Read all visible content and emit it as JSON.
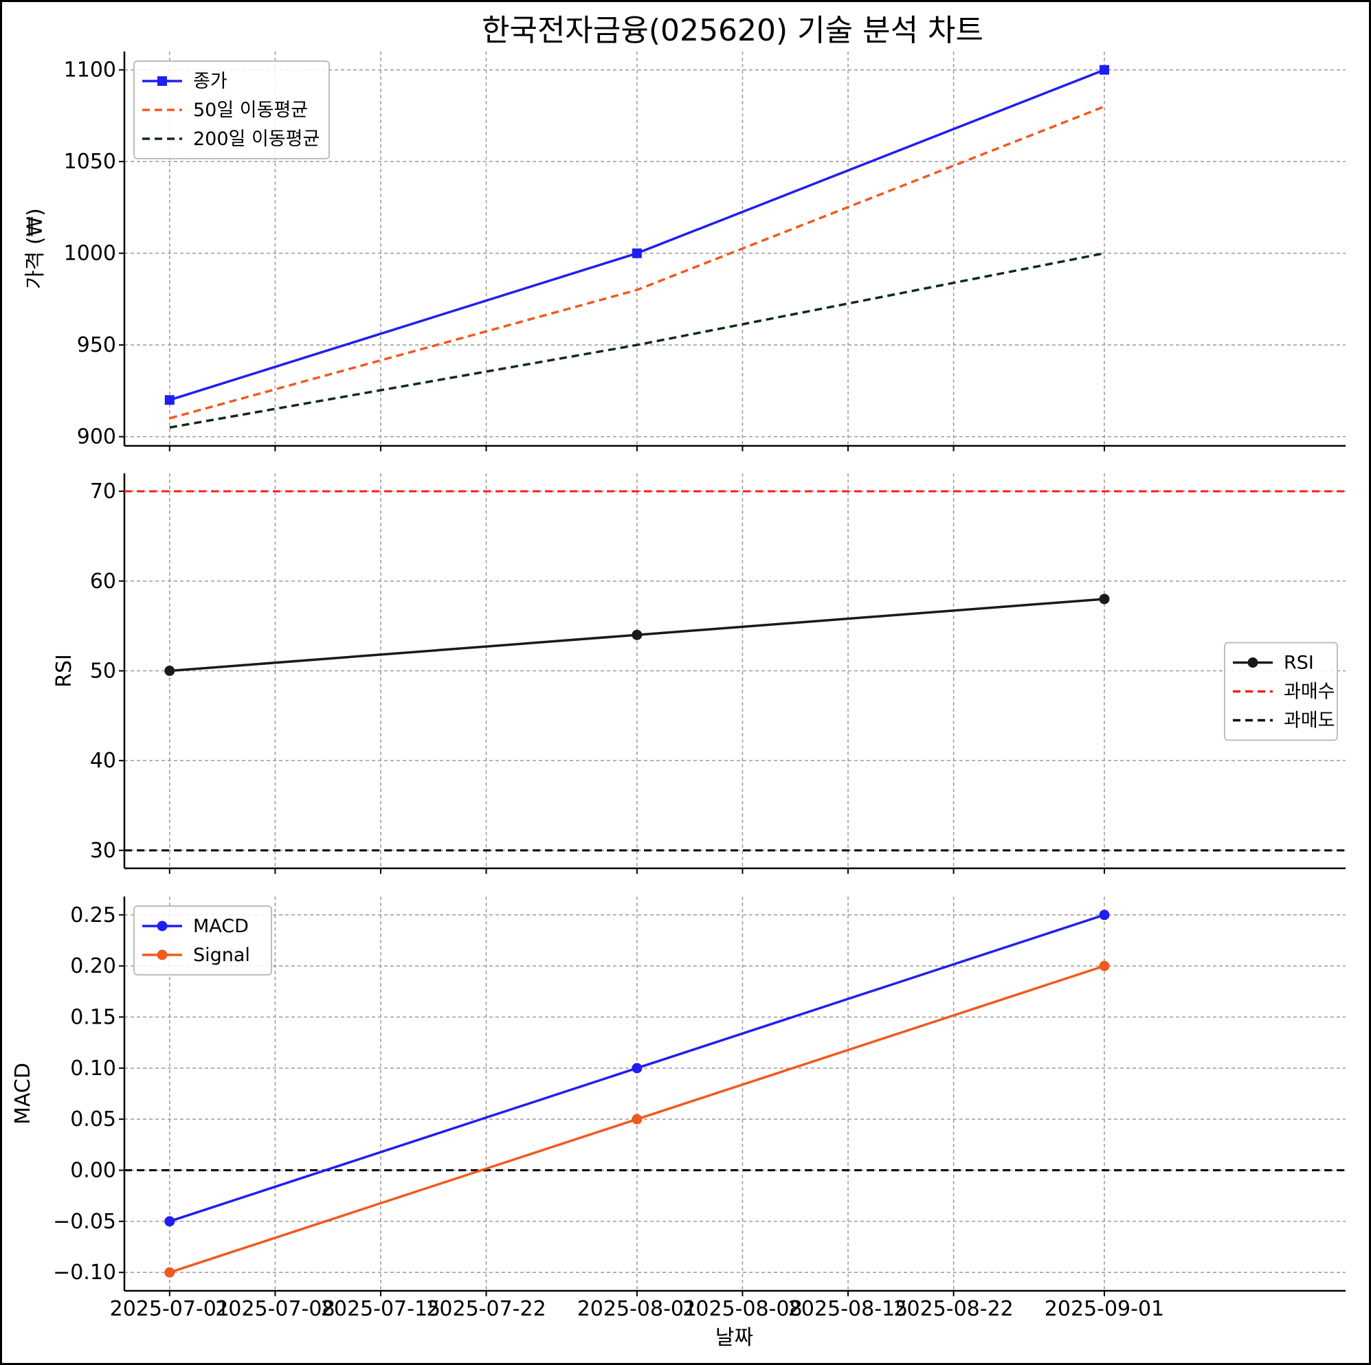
{
  "chart_data": {
    "type": "line",
    "title": "한국전자금융(025620) 기술 분석 차트",
    "x": [
      "2025-07-01",
      "2025-08-01",
      "2025-09-01"
    ],
    "xlim": [
      "2025-06-28",
      "2025-09-17"
    ],
    "x_tick_labels": [
      "2025-07-01",
      "2025-07-08",
      "2025-07-15",
      "2025-07-22",
      "2025-08-01",
      "2025-08-08",
      "2025-08-15",
      "2025-08-22",
      "2025-09-01"
    ],
    "xlabel": "날짜",
    "grid": true,
    "panels": [
      {
        "id": "price",
        "ylabel": "가격 (₩)",
        "ylim": [
          895,
          1110
        ],
        "yticks": [
          900,
          950,
          1000,
          1050,
          1100
        ],
        "tick_format": "int",
        "legend_position": "upper-left",
        "series": [
          {
            "name": "종가",
            "values": [
              920,
              1000,
              1100
            ],
            "color": "#1f1ff0",
            "style": "solid",
            "marker": "square"
          },
          {
            "name": "50일 이동평균",
            "values": [
              910,
              980,
              1080
            ],
            "color": "#f05a1e",
            "style": "dashed",
            "marker": "none"
          },
          {
            "name": "200일 이동평균",
            "values": [
              905,
              950,
              1000
            ],
            "color": "#0f2d14",
            "style": "dashed",
            "marker": "none"
          }
        ],
        "reference_lines": []
      },
      {
        "id": "rsi",
        "ylabel": "RSI",
        "ylim": [
          28,
          72
        ],
        "yticks": [
          30,
          40,
          50,
          60,
          70
        ],
        "tick_format": "int",
        "legend_position": "center-right",
        "series": [
          {
            "name": "RSI",
            "values": [
              50,
              54,
              58
            ],
            "color": "#1a1a1a",
            "style": "solid",
            "marker": "circle"
          }
        ],
        "reference_lines": [
          {
            "name": "과매수",
            "y": 70,
            "color": "#ff1a1a",
            "style": "dashed"
          },
          {
            "name": "과매도",
            "y": 30,
            "color": "#000000",
            "style": "dashed"
          }
        ]
      },
      {
        "id": "macd",
        "ylabel": "MACD",
        "ylim": [
          -0.118,
          0.268
        ],
        "yticks": [
          -0.1,
          -0.05,
          0.0,
          0.05,
          0.1,
          0.15,
          0.2,
          0.25
        ],
        "tick_format": "fixed2",
        "legend_position": "upper-left",
        "series": [
          {
            "name": "MACD",
            "values": [
              -0.05,
              0.1,
              0.25
            ],
            "color": "#1f1ff0",
            "style": "solid",
            "marker": "circle"
          },
          {
            "name": "Signal",
            "values": [
              -0.1,
              0.05,
              0.2
            ],
            "color": "#f05a1e",
            "style": "solid",
            "marker": "circle"
          }
        ],
        "reference_lines": [
          {
            "name": "",
            "y": 0,
            "color": "#000000",
            "style": "dashed"
          }
        ]
      }
    ]
  }
}
